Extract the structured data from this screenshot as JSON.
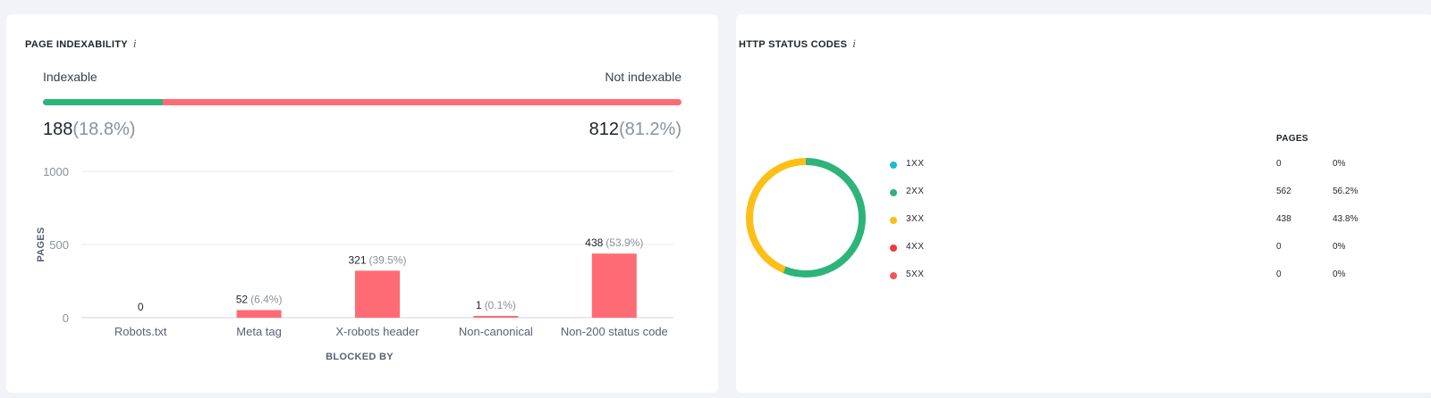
{
  "indexability": {
    "title": "PAGE INDEXABILITY",
    "info": "i",
    "indexable_label": "Indexable",
    "not_indexable_label": "Not indexable",
    "indexable_count": "188",
    "indexable_pct": "(18.8%)",
    "not_indexable_count": "812",
    "not_indexable_pct": "(81.2%)",
    "indexable_fraction": 0.188,
    "colors": {
      "indexable": "#2db47b",
      "not_indexable": "#ff6b74"
    }
  },
  "chart_data": {
    "type": "bar",
    "categories": [
      "Robots.txt",
      "Meta tag",
      "X-robots header",
      "Non-canonical",
      "Non-200 status code"
    ],
    "values": [
      0,
      52,
      321,
      1,
      438
    ],
    "value_labels": [
      "0",
      "52",
      "321",
      "1",
      "438"
    ],
    "pct_labels": [
      "",
      "(6.4%)",
      "(39.5%)",
      "(0.1%)",
      "(53.9%)"
    ],
    "xlabel": "BLOCKED BY",
    "ylabel": "PAGES",
    "ylim": [
      0,
      1000
    ],
    "yticks": [
      "0",
      "500",
      "1000"
    ],
    "grid": true,
    "color": "#ff6b74"
  },
  "http_status": {
    "title": "HTTP STATUS CODES",
    "info": "i",
    "pages_header": "PAGES",
    "rows": [
      {
        "label": "1XX",
        "pages": "0",
        "pct": "0%",
        "value": 0,
        "color": "#1cbcd1"
      },
      {
        "label": "2XX",
        "pages": "562",
        "pct": "56.2%",
        "value": 562,
        "color": "#2db47b"
      },
      {
        "label": "3XX",
        "pages": "438",
        "pct": "43.8%",
        "value": 438,
        "color": "#fdbf16"
      },
      {
        "label": "4XX",
        "pages": "0",
        "pct": "0%",
        "value": 0,
        "color": "#ef3b3b"
      },
      {
        "label": "5XX",
        "pages": "0",
        "pct": "0%",
        "value": 0,
        "color": "#f15656"
      }
    ]
  }
}
